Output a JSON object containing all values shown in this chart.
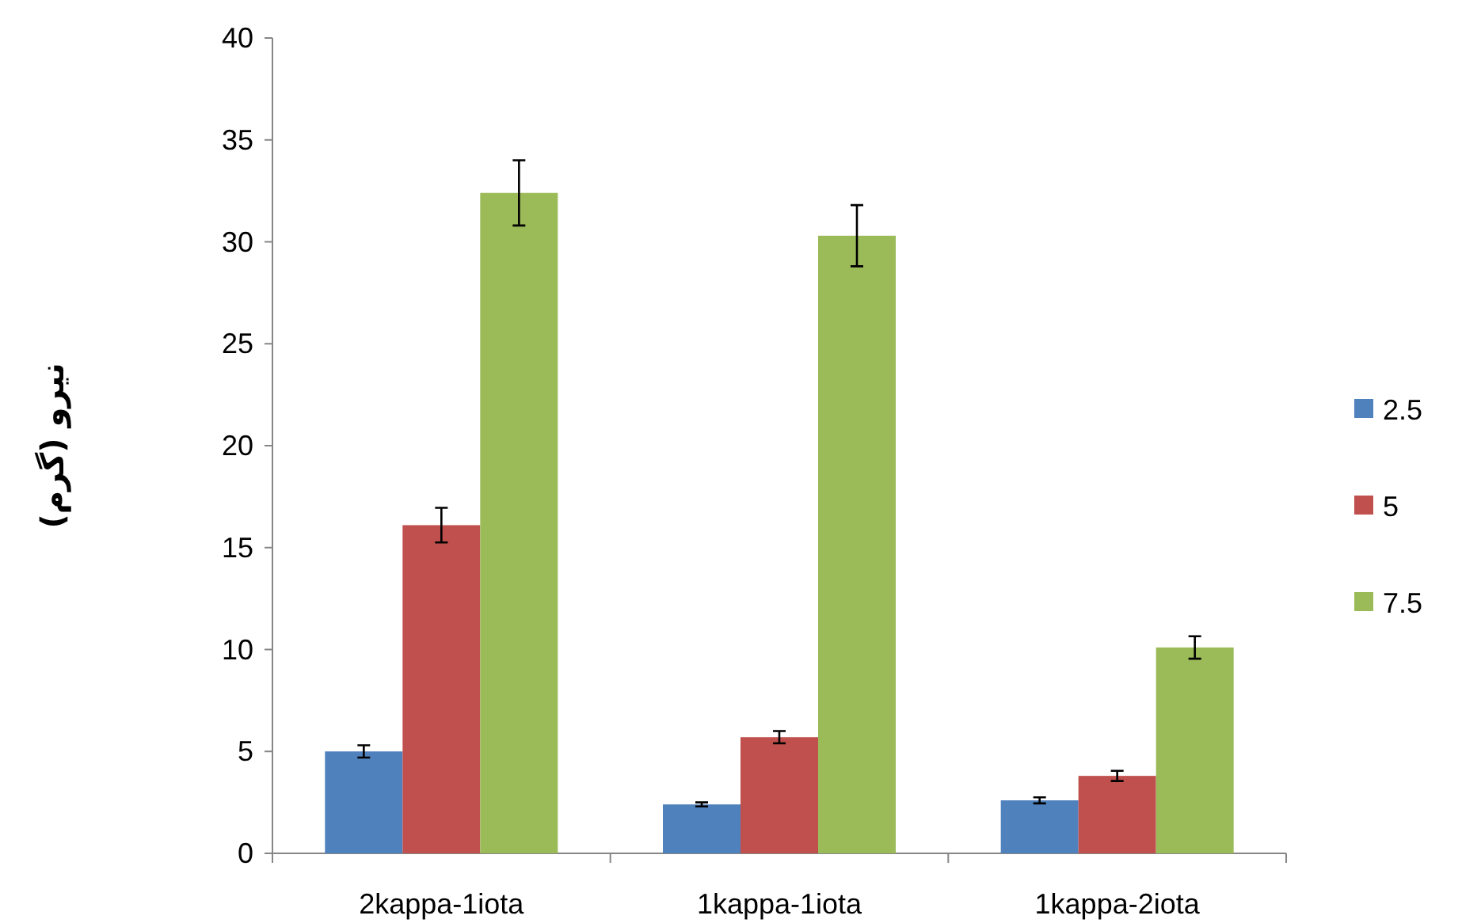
{
  "chart_data": {
    "type": "bar",
    "ylabel": "نیرو (گرم)",
    "categories": [
      "2kappa-1iota",
      "1kappa-1iota",
      "1kappa-2iota"
    ],
    "series": [
      {
        "name": "2.5",
        "color": "#4f81bd",
        "values": [
          5.0,
          2.4,
          2.6
        ],
        "errors": [
          0.3,
          0.1,
          0.15
        ]
      },
      {
        "name": "5",
        "color": "#c0504d",
        "values": [
          16.1,
          5.7,
          3.8
        ],
        "errors": [
          0.85,
          0.3,
          0.25
        ]
      },
      {
        "name": "7.5",
        "color": "#9bbb59",
        "values": [
          32.4,
          30.3,
          10.1
        ],
        "errors": [
          1.6,
          1.5,
          0.55
        ]
      }
    ],
    "ylim": [
      0,
      40
    ],
    "yticks": [
      0,
      5,
      10,
      15,
      20,
      25,
      30,
      35,
      40
    ],
    "grid": false,
    "legend": "right"
  }
}
